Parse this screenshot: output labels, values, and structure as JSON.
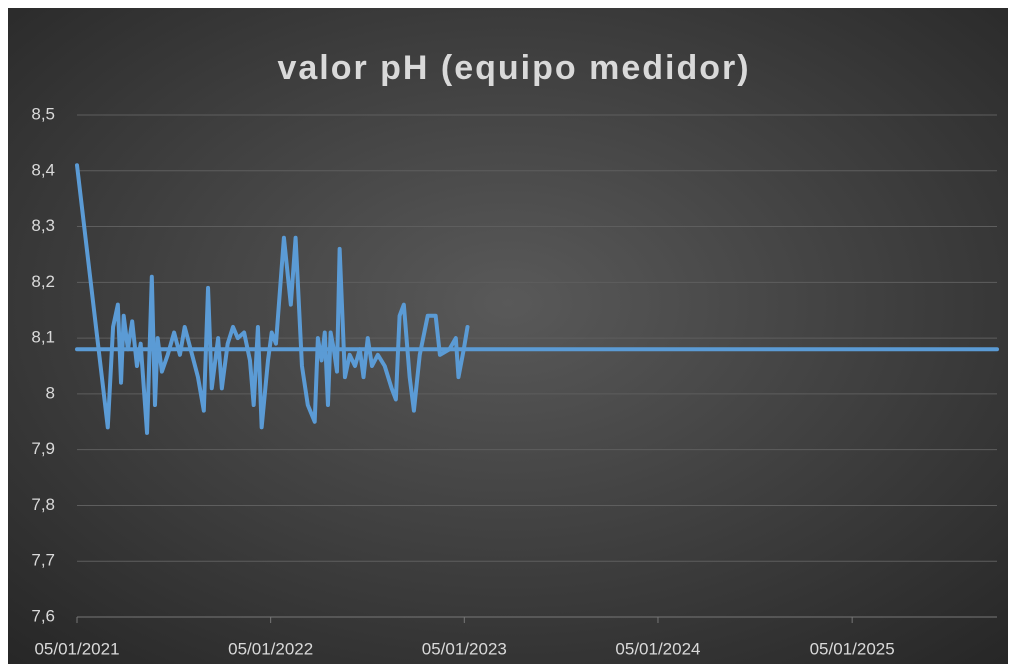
{
  "chart_data": {
    "type": "line",
    "title": "valor pH (equipo medidor)",
    "xlim": [
      "2021-01-05",
      "2025-10-05"
    ],
    "xticks": [
      {
        "value": "2021-01-05",
        "label": "05/01/2021"
      },
      {
        "value": "2022-01-05",
        "label": "05/01/2022"
      },
      {
        "value": "2023-01-05",
        "label": "05/01/2023"
      },
      {
        "value": "2024-01-05",
        "label": "05/01/2024"
      },
      {
        "value": "2025-01-05",
        "label": "05/01/2025"
      }
    ],
    "ylim": [
      7.6,
      8.5
    ],
    "yticks": [
      {
        "value": 7.6,
        "label": "7,6"
      },
      {
        "value": 7.7,
        "label": "7,7"
      },
      {
        "value": 7.8,
        "label": "7,8"
      },
      {
        "value": 7.9,
        "label": "7,9"
      },
      8,
      {
        "value": 8.1,
        "label": "8,1"
      },
      {
        "value": 8.2,
        "label": "8,2"
      },
      {
        "value": 8.3,
        "label": "8,3"
      },
      {
        "value": 8.4,
        "label": "8,4"
      },
      {
        "value": 8.5,
        "label": "8,5"
      }
    ],
    "grid": true,
    "series": [
      {
        "color": "#5b9bd5",
        "x": [
          "2021-01-05",
          "2021-03-04",
          "2021-03-14",
          "2021-03-23",
          "2021-03-29",
          "2021-04-03",
          "2021-04-11",
          "2021-04-19",
          "2021-04-28",
          "2021-05-05",
          "2021-05-11",
          "2021-05-17",
          "2021-05-26",
          "2021-06-01",
          "2021-06-06",
          "2021-06-14",
          "2021-06-25",
          "2021-07-07",
          "2021-07-18",
          "2021-07-27",
          "2021-08-10",
          "2021-08-21",
          "2021-09-01",
          "2021-09-09",
          "2021-09-16",
          "2021-09-28",
          "2021-10-05",
          "2021-10-16",
          "2021-10-26",
          "2021-11-04",
          "2021-11-16",
          "2021-11-27",
          "2021-12-04",
          "2021-12-12",
          "2021-12-19",
          "2021-12-31",
          "2022-01-07",
          "2022-01-15",
          "2022-01-30",
          "2022-02-12",
          "2022-02-21",
          "2022-03-05",
          "2022-03-16",
          "2022-03-29",
          "2022-04-04",
          "2022-04-11",
          "2022-04-17",
          "2022-04-23",
          "2022-04-28",
          "2022-05-04",
          "2022-05-10",
          "2022-05-15",
          "2022-05-25",
          "2022-06-03",
          "2022-06-13",
          "2022-06-22",
          "2022-06-29",
          "2022-07-07",
          "2022-07-15",
          "2022-07-26",
          "2022-08-08",
          "2022-08-21",
          "2022-08-29",
          "2022-09-05",
          "2022-09-13",
          "2022-09-24",
          "2022-10-02",
          "2022-10-13",
          "2022-10-28",
          "2022-11-12",
          "2022-11-20",
          "2022-12-08",
          "2022-12-20",
          "2022-12-25",
          "2023-01-04",
          "2023-01-11"
        ],
        "values": [
          8.41,
          7.94,
          8.12,
          8.16,
          8.02,
          8.14,
          8.08,
          8.13,
          8.05,
          8.09,
          8.01,
          7.93,
          8.21,
          7.98,
          8.1,
          8.04,
          8.07,
          8.11,
          8.07,
          8.12,
          8.07,
          8.03,
          7.97,
          8.19,
          8.01,
          8.1,
          8.01,
          8.09,
          8.12,
          8.1,
          8.11,
          8.06,
          7.98,
          8.12,
          7.94,
          8.06,
          8.11,
          8.09,
          8.28,
          8.16,
          8.28,
          8.05,
          7.98,
          7.95,
          8.1,
          8.06,
          8.11,
          7.98,
          8.11,
          8.08,
          8.04,
          8.26,
          8.03,
          8.07,
          8.05,
          8.08,
          8.03,
          8.1,
          8.05,
          8.07,
          8.05,
          8.01,
          7.99,
          8.14,
          8.16,
          8.03,
          7.97,
          8.07,
          8.14,
          8.14,
          8.07,
          8.08,
          8.1,
          8.03,
          8.08,
          8.12
        ]
      },
      {
        "color": "#5b9bd5",
        "x": [
          "2021-01-05",
          "2025-10-05"
        ],
        "values": [
          8.08,
          8.08
        ]
      }
    ]
  }
}
